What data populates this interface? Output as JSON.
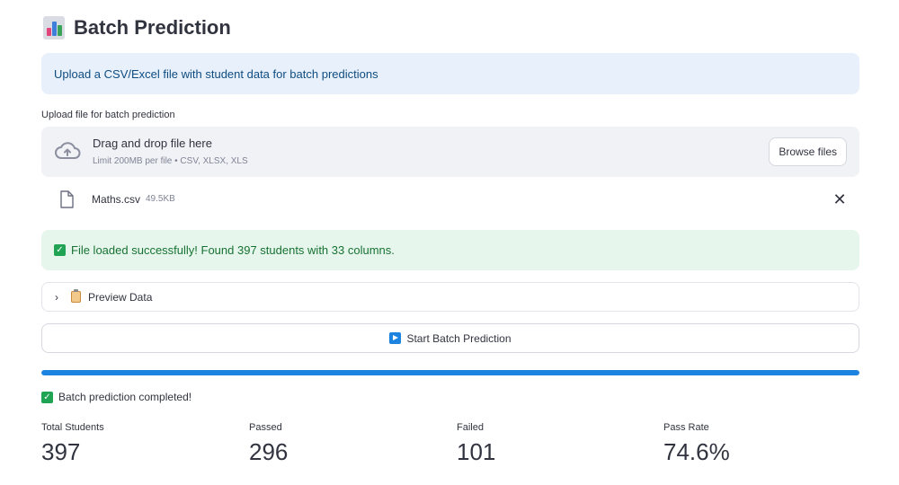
{
  "header": {
    "title": "Batch Prediction",
    "icon": "bar-chart-icon"
  },
  "info": {
    "text": "Upload a CSV/Excel file with student data for batch predictions"
  },
  "uploader": {
    "label": "Upload file for batch prediction",
    "drop_title": "Drag and drop file here",
    "limit_text": "Limit 200MB per file • CSV, XLSX, XLS",
    "browse_label": "Browse files"
  },
  "file": {
    "name": "Maths.csv",
    "size": "49.5KB"
  },
  "success": {
    "text": "File loaded successfully! Found 397 students with 33 columns."
  },
  "expander": {
    "label": "Preview Data"
  },
  "start_button": {
    "label": "Start Batch Prediction"
  },
  "progress": {
    "value": 1.0
  },
  "completed": {
    "text": "Batch prediction completed!"
  },
  "metrics": [
    {
      "label": "Total Students",
      "value": "397"
    },
    {
      "label": "Passed",
      "value": "296"
    },
    {
      "label": "Failed",
      "value": "101"
    },
    {
      "label": "Pass Rate",
      "value": "74.6%"
    }
  ],
  "colors": {
    "accent": "#1c83e1",
    "success": "#21a354",
    "info_bg": "#e8f1fb",
    "success_bg": "#e6f6ec"
  }
}
